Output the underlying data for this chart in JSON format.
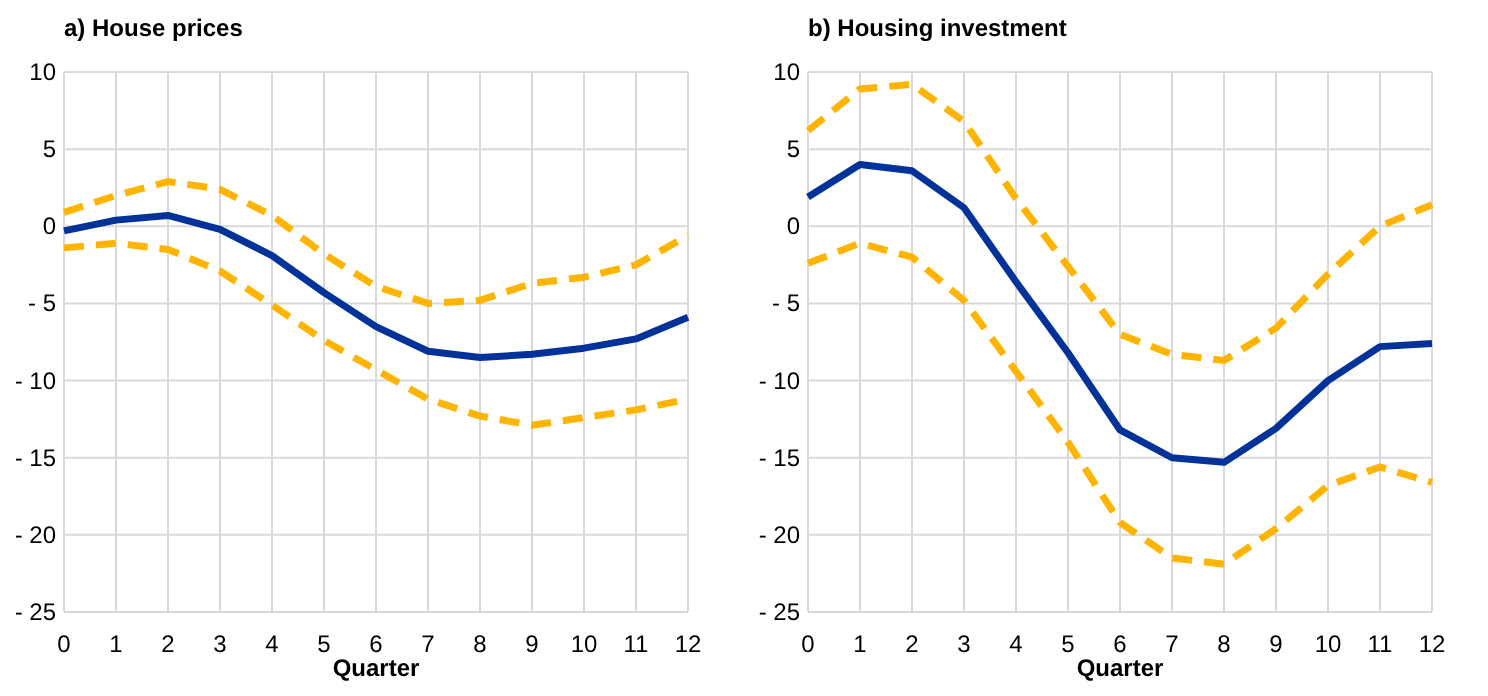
{
  "chart_data": [
    {
      "type": "line",
      "title": "a) House prices",
      "xlabel": "Quarter",
      "x": [
        0,
        1,
        2,
        3,
        4,
        5,
        6,
        7,
        8,
        9,
        10,
        11,
        12
      ],
      "xlim": [
        0,
        12
      ],
      "xticks": [
        0,
        1,
        2,
        3,
        4,
        5,
        6,
        7,
        8,
        9,
        10,
        11,
        12
      ],
      "ylim": [
        -25,
        10
      ],
      "yticks": [
        -25,
        -20,
        -15,
        -10,
        -5,
        0,
        5,
        10
      ],
      "grid": true,
      "series": [
        {
          "color": "#ffb400",
          "line_style": "dashed",
          "values": [
            0.9,
            2.0,
            2.9,
            2.4,
            0.7,
            -1.8,
            -3.9,
            -5.0,
            -4.8,
            -3.7,
            -3.3,
            -2.5,
            -0.6
          ]
        },
        {
          "color": "#ffb400",
          "line_style": "dashed",
          "values": [
            -1.4,
            -1.1,
            -1.5,
            -2.9,
            -5.1,
            -7.4,
            -9.3,
            -11.2,
            -12.3,
            -12.9,
            -12.4,
            -11.9,
            -11.2
          ]
        },
        {
          "color": "#003299",
          "line_style": "solid",
          "values": [
            -0.3,
            0.4,
            0.7,
            -0.2,
            -1.9,
            -4.3,
            -6.5,
            -8.1,
            -8.5,
            -8.3,
            -7.9,
            -7.3,
            -5.9
          ]
        }
      ]
    },
    {
      "type": "line",
      "title": "b) Housing investment",
      "xlabel": "Quarter",
      "x": [
        0,
        1,
        2,
        3,
        4,
        5,
        6,
        7,
        8,
        9,
        10,
        11,
        12
      ],
      "xlim": [
        0,
        12
      ],
      "xticks": [
        0,
        1,
        2,
        3,
        4,
        5,
        6,
        7,
        8,
        9,
        10,
        11,
        12
      ],
      "ylim": [
        -25,
        10
      ],
      "yticks": [
        -25,
        -20,
        -15,
        -10,
        -5,
        0,
        5,
        10
      ],
      "grid": true,
      "series": [
        {
          "color": "#ffb400",
          "line_style": "dashed",
          "values": [
            6.2,
            8.9,
            9.2,
            6.8,
            1.8,
            -2.6,
            -7.0,
            -8.3,
            -8.7,
            -6.6,
            -3.1,
            0.0,
            1.4
          ]
        },
        {
          "color": "#ffb400",
          "line_style": "dashed",
          "values": [
            -2.4,
            -1.1,
            -2.0,
            -4.8,
            -9.4,
            -14.0,
            -19.2,
            -21.5,
            -21.9,
            -19.6,
            -16.8,
            -15.6,
            -16.6
          ]
        },
        {
          "color": "#003299",
          "line_style": "solid",
          "values": [
            1.9,
            4.0,
            3.6,
            1.2,
            -3.6,
            -8.2,
            -13.2,
            -15.0,
            -15.3,
            -13.1,
            -10.0,
            -7.8,
            -7.6
          ]
        }
      ]
    }
  ]
}
